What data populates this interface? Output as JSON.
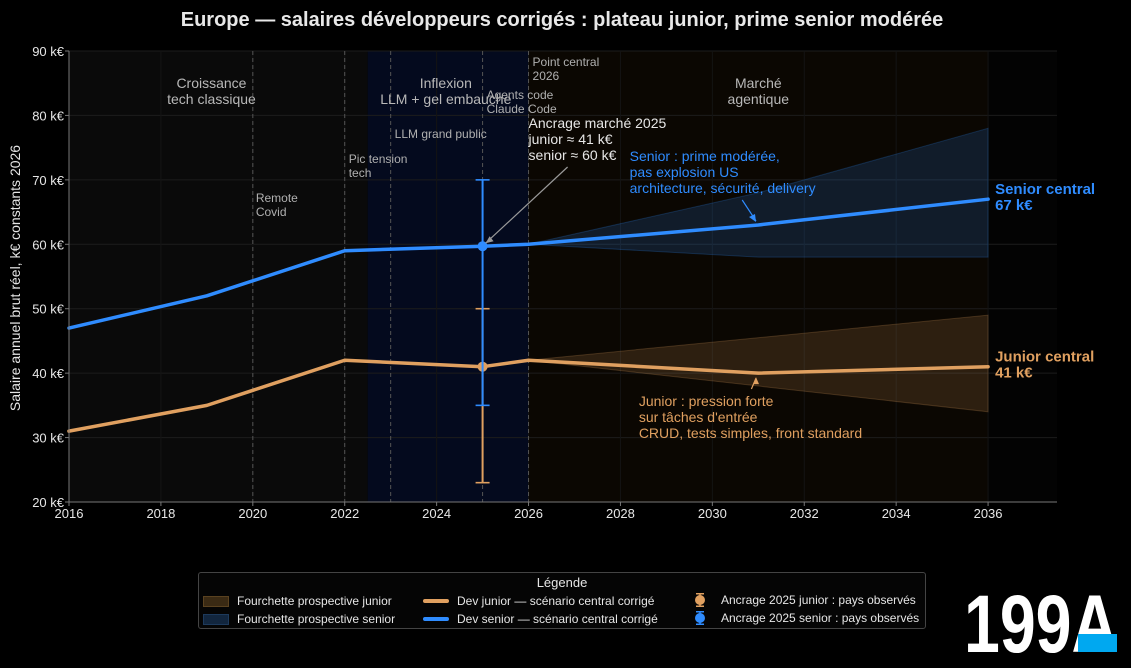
{
  "chart_data": {
    "type": "line",
    "title": "Europe — salaires développeurs corrigés : plateau junior, prime senior modérée",
    "ylabel": "Salaire annuel brut réel, k€ constants 2026",
    "xlabel": "",
    "xlim": [
      2016,
      2037.5
    ],
    "ylim": [
      20,
      90
    ],
    "x_ticks": [
      2016,
      2018,
      2020,
      2022,
      2024,
      2026,
      2028,
      2030,
      2032,
      2034,
      2036
    ],
    "y_ticks": [
      {
        "value": 20,
        "label": "20 k€"
      },
      {
        "value": 30,
        "label": "30 k€"
      },
      {
        "value": 40,
        "label": "40 k€"
      },
      {
        "value": 50,
        "label": "50 k€"
      },
      {
        "value": 60,
        "label": "60 k€"
      },
      {
        "value": 70,
        "label": "70 k€"
      },
      {
        "value": 80,
        "label": "80 k€"
      },
      {
        "value": 90,
        "label": "90 k€"
      }
    ],
    "grid": true,
    "series": [
      {
        "name": "Dev junior — scénario central corrigé",
        "color": "#e0a060",
        "x": [
          2016,
          2019,
          2022,
          2025,
          2026,
          2031,
          2036
        ],
        "values": [
          31,
          35,
          42,
          41,
          42,
          40,
          41
        ]
      },
      {
        "name": "Dev senior — scénario central corrigé",
        "color": "#2f8cff",
        "x": [
          2016,
          2019,
          2022,
          2025,
          2026,
          2031,
          2036
        ],
        "values": [
          47,
          52,
          59,
          59.7,
          60,
          63,
          67
        ]
      }
    ],
    "bands": [
      {
        "name": "Fourchette prospective junior",
        "color": "#e0a060",
        "x": [
          2026,
          2036
        ],
        "low": [
          42,
          34
        ],
        "high": [
          42,
          49
        ]
      },
      {
        "name": "Fourchette prospective senior",
        "color": "#2f8cff",
        "x": [
          2026,
          2031,
          2036
        ],
        "low": [
          60,
          58,
          58
        ],
        "high": [
          60,
          68,
          78
        ]
      }
    ],
    "anchors_2025": [
      {
        "name": "Ancrage 2025 junior : pays observés",
        "color": "#e0a060",
        "x": 2025,
        "value": 41,
        "low": 23,
        "high": 50
      },
      {
        "name": "Ancrage 2025 senior : pays observés",
        "color": "#2f8cff",
        "x": 2025,
        "value": 59.7,
        "low": 35,
        "high": 70
      }
    ],
    "eras": [
      {
        "label": [
          "Croissance",
          "tech classique"
        ],
        "from": 2016,
        "to": 2022.5,
        "color": "#0a0a0a"
      },
      {
        "label": [
          "Inflexion",
          "LLM + gel embauche"
        ],
        "from": 2022.5,
        "to": 2026,
        "color": "#040a1e"
      },
      {
        "label": [
          "Marché",
          "agentique"
        ],
        "from": 2026,
        "to": 2036,
        "color": "#0b0702"
      }
    ],
    "events": [
      {
        "x": 2020,
        "label": [
          "Remote",
          "Covid"
        ]
      },
      {
        "x": 2022,
        "label": [
          "Pic tension",
          "tech"
        ]
      },
      {
        "x": 2023,
        "label": [
          "LLM grand public"
        ]
      },
      {
        "x": 2025,
        "label": [
          "Agents code",
          "Claude Code"
        ]
      },
      {
        "x": 2026,
        "label": [
          "Point central",
          "2026"
        ]
      }
    ],
    "annotations": {
      "anchor": [
        "Ancrage marché 2025",
        "junior ≈ 41 k€",
        "senior ≈ 60 k€"
      ],
      "senior": [
        "Senior : prime modérée,",
        "pas explosion US",
        "architecture, sécurité, delivery"
      ],
      "junior": [
        "Junior : pression forte",
        "sur tâches d'entrée",
        "CRUD, tests simples, front standard"
      ],
      "senior_end": [
        "Senior central",
        "67 k€"
      ],
      "junior_end": [
        "Junior central",
        "41 k€"
      ]
    },
    "legend_position": "bottom-center"
  },
  "legend": {
    "title": "Légende",
    "items": {
      "band_junior": "Fourchette prospective junior",
      "band_senior": "Fourchette prospective senior",
      "line_junior": "Dev junior — scénario central corrigé",
      "line_senior": "Dev senior — scénario central corrigé",
      "anchor_junior": "Ancrage 2025 junior : pays observés",
      "anchor_senior": "Ancrage 2025 senior : pays observés"
    }
  },
  "logo": {
    "text": "199A",
    "color": "#ffffff",
    "accent": "#00a8f0"
  }
}
